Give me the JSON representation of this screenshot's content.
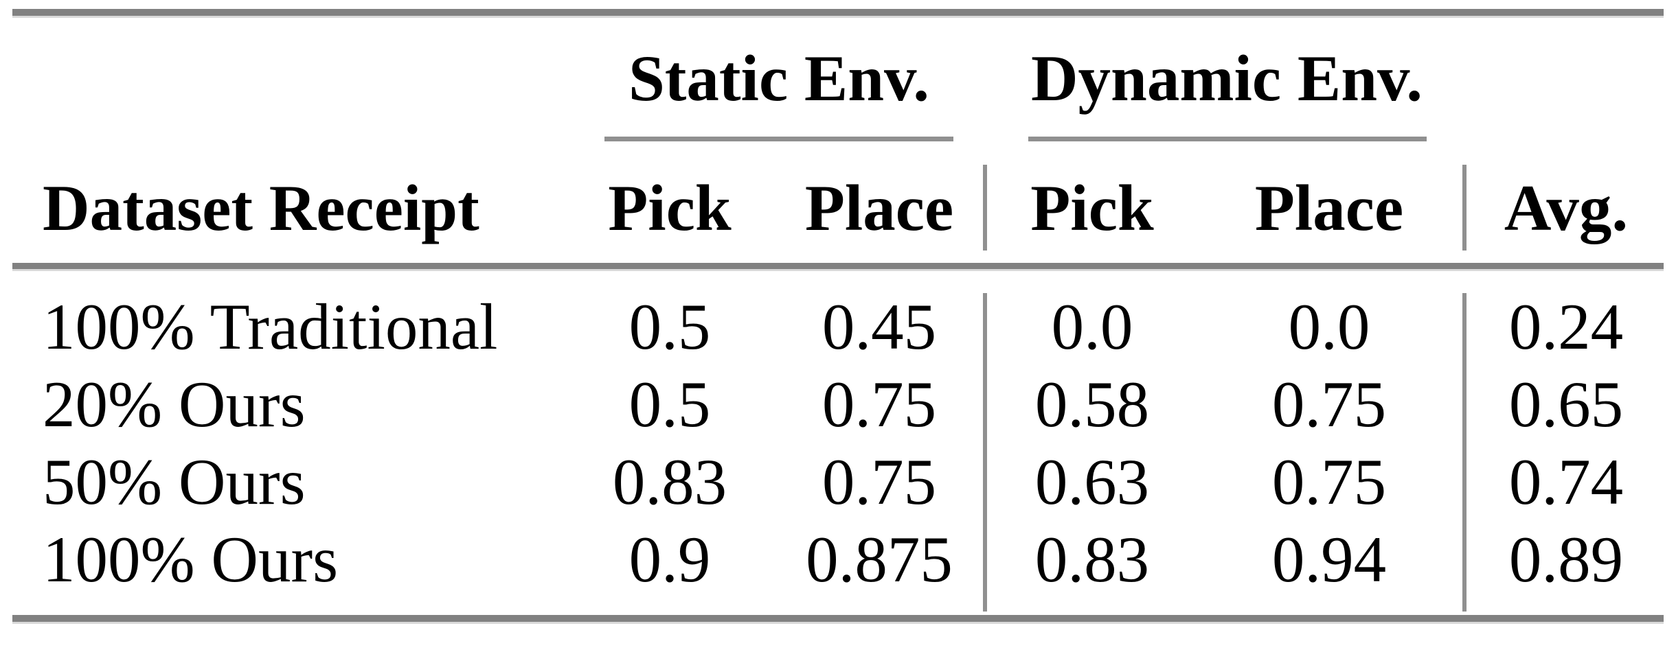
{
  "table": {
    "group_headers": {
      "static": "Static Env.",
      "dynamic": "Dynamic Env."
    },
    "column_headers": {
      "row_label": "Dataset Receipt",
      "static_pick": "Pick",
      "static_place": "Place",
      "dynamic_pick": "Pick",
      "dynamic_place": "Place",
      "avg": "Avg."
    },
    "rows": [
      {
        "label": "100% Traditional",
        "values": [
          "0.5",
          "0.45",
          "0.0",
          "0.0",
          "0.24"
        ]
      },
      {
        "label": "20% Ours",
        "values": [
          "0.5",
          "0.75",
          "0.58",
          "0.75",
          "0.65"
        ]
      },
      {
        "label": "50% Ours",
        "values": [
          "0.83",
          "0.75",
          "0.63",
          "0.75",
          "0.74"
        ]
      },
      {
        "label": "100% Ours",
        "values": [
          "0.9",
          "0.875",
          "0.83",
          "0.94",
          "0.89"
        ]
      }
    ],
    "colors": {
      "thick_rule": "#818181",
      "thin_rule": "#909090",
      "text": "#000000",
      "background": "#ffffff"
    }
  },
  "chart_data": {
    "type": "table",
    "columns": [
      "Dataset Receipt",
      "Static Env. Pick",
      "Static Env. Place",
      "Dynamic Env. Pick",
      "Dynamic Env. Place",
      "Avg."
    ],
    "rows": [
      [
        "100% Traditional",
        0.5,
        0.45,
        0.0,
        0.0,
        0.24
      ],
      [
        "20% Ours",
        0.5,
        0.75,
        0.58,
        0.75,
        0.65
      ],
      [
        "50% Ours",
        0.83,
        0.75,
        0.63,
        0.75,
        0.74
      ],
      [
        "100% Ours",
        0.9,
        0.875,
        0.83,
        0.94,
        0.89
      ]
    ]
  }
}
